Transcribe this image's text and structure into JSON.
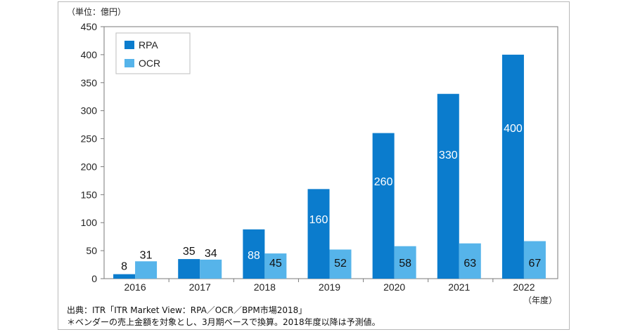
{
  "chart_data": {
    "type": "bar",
    "unit_label": "（単位：億円）",
    "x_unit_label": "（年度）",
    "categories": [
      "2016",
      "2017",
      "2018",
      "2019",
      "2020",
      "2021",
      "2022"
    ],
    "series": [
      {
        "name": "RPA",
        "color": "#0b7ccd",
        "values": [
          8,
          35,
          88,
          160,
          260,
          330,
          400
        ]
      },
      {
        "name": "OCR",
        "color": "#56b4ea",
        "values": [
          31,
          34,
          45,
          52,
          58,
          63,
          67
        ]
      }
    ],
    "ylim": [
      0,
      450
    ],
    "yticks": [
      0,
      50,
      100,
      150,
      200,
      250,
      300,
      350,
      400,
      450
    ],
    "grid": false,
    "legend": "top-left",
    "data_labels": {
      "RPA": [
        "8",
        "35",
        "88",
        "160",
        "260",
        "330",
        "400"
      ],
      "OCR": [
        "31",
        "34",
        "45",
        "52",
        "58",
        "63",
        "67"
      ]
    }
  },
  "footer": {
    "source": "出典：ITR「ITR Market View：RPA／OCR／BPM市場2018」",
    "note": "＊ベンダーの売上金額を対象とし、3月期ベースで換算。2018年度以降は予測値。"
  }
}
